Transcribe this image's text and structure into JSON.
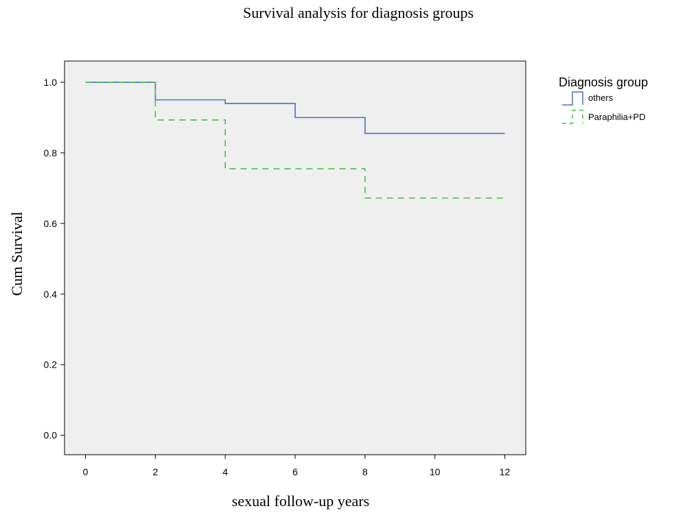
{
  "chart_data": {
    "type": "line",
    "step": true,
    "title": "Survival analysis for diagnosis groups",
    "xlabel": "sexual follow-up years",
    "ylabel": "Cum Survival",
    "xlim": [
      -0.6,
      12.6
    ],
    "ylim": [
      -0.055,
      1.06
    ],
    "xticks": [
      0,
      2,
      4,
      6,
      8,
      10,
      12
    ],
    "xtick_labels": [
      "0",
      "2",
      "4",
      "6",
      "8",
      "10",
      "12"
    ],
    "yticks": [
      0.0,
      0.2,
      0.4,
      0.6,
      0.8,
      1.0
    ],
    "ytick_labels": [
      "0.0",
      "0.2",
      "0.4",
      "0.6",
      "0.8",
      "1.0"
    ],
    "grid": false,
    "legend": {
      "title": "Diagnosis group",
      "position": "right-top"
    },
    "series": [
      {
        "name": "others",
        "color": "#4a6fbf",
        "dash": "solid",
        "x": [
          0,
          2,
          4,
          6,
          8,
          12
        ],
        "y": [
          1.0,
          0.95,
          0.94,
          0.9,
          0.855,
          0.855
        ]
      },
      {
        "name": "Paraphilia+PD",
        "color": "#44c244",
        "dash": "dashed",
        "x": [
          0,
          2,
          4,
          8,
          12
        ],
        "y": [
          1.0,
          0.893,
          0.755,
          0.672,
          0.672
        ]
      }
    ]
  },
  "colors": {
    "plot_background": "#efefef",
    "axis": "#000000"
  }
}
